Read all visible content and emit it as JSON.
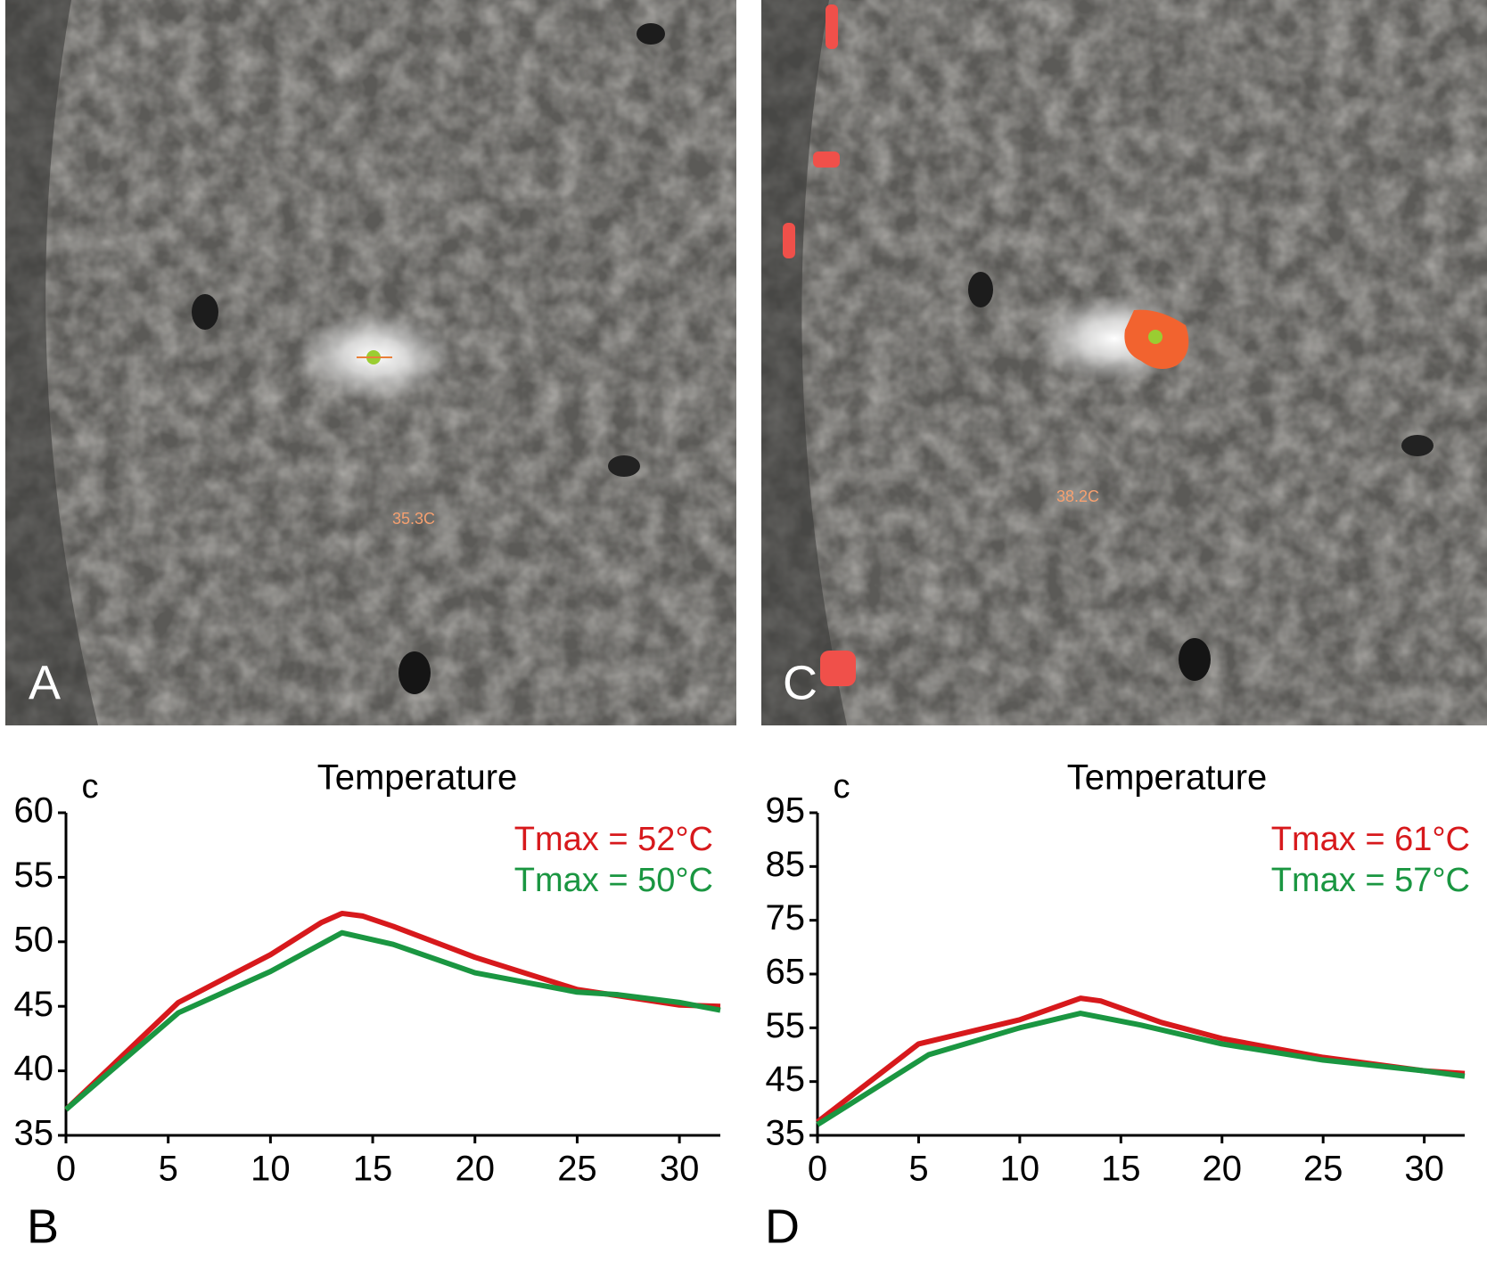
{
  "images": [
    {
      "label": "A",
      "readout": "35.3C"
    },
    {
      "label": "C",
      "readout": "38.2C"
    }
  ],
  "chart_data": [
    {
      "type": "line",
      "panel_label": "B",
      "title": "Temperature",
      "y_label": "c",
      "xlim": [
        0,
        32
      ],
      "xticks": [
        0,
        5,
        10,
        15,
        20,
        25,
        30
      ],
      "ylim": [
        35,
        60
      ],
      "yticks": [
        35,
        40,
        45,
        50,
        55,
        60
      ],
      "series": [
        {
          "name": "Tmax = 52°C",
          "color": "#d7191c",
          "x": [
            0,
            5.5,
            10,
            12.5,
            13.5,
            14.5,
            16,
            20,
            25,
            30,
            32
          ],
          "values": [
            37,
            45.3,
            49,
            51.5,
            52.2,
            52,
            51.2,
            48.8,
            46.3,
            45.1,
            45
          ]
        },
        {
          "name": "Tmax = 50°C",
          "color": "#1a9641",
          "x": [
            0,
            5.5,
            10,
            13.5,
            16,
            20,
            25,
            27,
            30,
            32
          ],
          "values": [
            37,
            44.5,
            47.7,
            50.7,
            49.8,
            47.6,
            46.1,
            45.9,
            45.3,
            44.7
          ]
        }
      ]
    },
    {
      "type": "line",
      "panel_label": "D",
      "title": "Temperature",
      "y_label": "c",
      "xlim": [
        0,
        32
      ],
      "xticks": [
        0,
        5,
        10,
        15,
        20,
        25,
        30
      ],
      "ylim": [
        35,
        95
      ],
      "yticks": [
        35,
        45,
        55,
        65,
        75,
        85,
        95
      ],
      "series": [
        {
          "name": "Tmax = 61°C",
          "color": "#d7191c",
          "x": [
            0,
            5,
            10,
            13,
            14,
            17,
            20,
            25,
            30,
            32
          ],
          "values": [
            37.5,
            52,
            56.5,
            60.5,
            60,
            56,
            53,
            49.5,
            47,
            46.5
          ]
        },
        {
          "name": "Tmax = 57°C",
          "color": "#1a9641",
          "x": [
            0,
            5.5,
            10,
            13,
            16,
            20,
            25,
            30,
            32
          ],
          "values": [
            37,
            50,
            55,
            57.7,
            55.5,
            52,
            49,
            47,
            46
          ]
        }
      ]
    }
  ]
}
